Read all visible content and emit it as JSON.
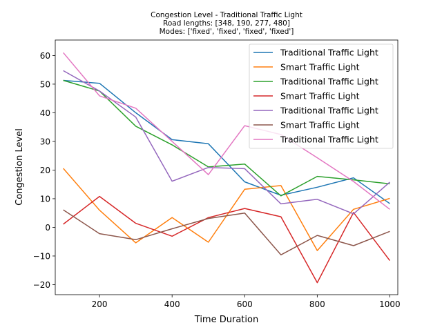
{
  "chart_data": {
    "type": "line",
    "title_lines": [
      "Congestion Level - Traditional Traffic Light",
      "Road lengths: [348, 190, 277, 480]",
      "Modes: ['fixed', 'fixed', 'fixed', 'fixed']"
    ],
    "xlabel": "Time Duration",
    "ylabel": "Congestion Level",
    "xlim": [
      78,
      1022
    ],
    "ylim": [
      -23.5,
      65.4
    ],
    "xticks": [
      200,
      400,
      600,
      800,
      1000
    ],
    "yticks": [
      -20,
      -10,
      0,
      10,
      20,
      30,
      40,
      50,
      60
    ],
    "grid": false,
    "legend_position": "top-right",
    "x": [
      100,
      200,
      300,
      400,
      500,
      600,
      700,
      800,
      900,
      1000
    ],
    "series": [
      {
        "name": "Traditional Traffic Light",
        "color": "#1f77b4",
        "values": [
          51.3,
          50.3,
          40.0,
          30.6,
          29.2,
          15.9,
          11.2,
          14.0,
          17.3,
          8.3
        ]
      },
      {
        "name": "Smart Traffic Light",
        "color": "#ff7f0e",
        "values": [
          20.6,
          6.0,
          -5.4,
          3.4,
          -5.2,
          13.3,
          14.6,
          -8.1,
          6.3,
          10.1
        ]
      },
      {
        "name": "Traditional Traffic Light",
        "color": "#2ca02c",
        "values": [
          51.3,
          47.6,
          35.3,
          28.8,
          21.1,
          22.1,
          11.0,
          17.8,
          16.6,
          15.2
        ]
      },
      {
        "name": "Smart Traffic Light",
        "color": "#d62728",
        "values": [
          1.1,
          10.8,
          1.4,
          -3.1,
          3.4,
          6.6,
          3.7,
          -19.3,
          5.2,
          -11.6
        ]
      },
      {
        "name": "Traditional Traffic Light",
        "color": "#9467bd",
        "values": [
          54.7,
          47.6,
          38.5,
          16.1,
          20.9,
          20.5,
          8.2,
          9.8,
          4.7,
          15.8
        ]
      },
      {
        "name": "Smart Traffic Light",
        "color": "#8c564b",
        "values": [
          6.1,
          -2.2,
          -4.3,
          -0.5,
          3.1,
          5.0,
          -9.6,
          -2.8,
          -6.4,
          -1.4
        ]
      },
      {
        "name": "Traditional Traffic Light",
        "color": "#e377c2",
        "values": [
          61.0,
          45.9,
          41.6,
          30.0,
          18.4,
          35.5,
          32.4,
          24.3,
          16.0,
          6.3
        ]
      }
    ]
  }
}
